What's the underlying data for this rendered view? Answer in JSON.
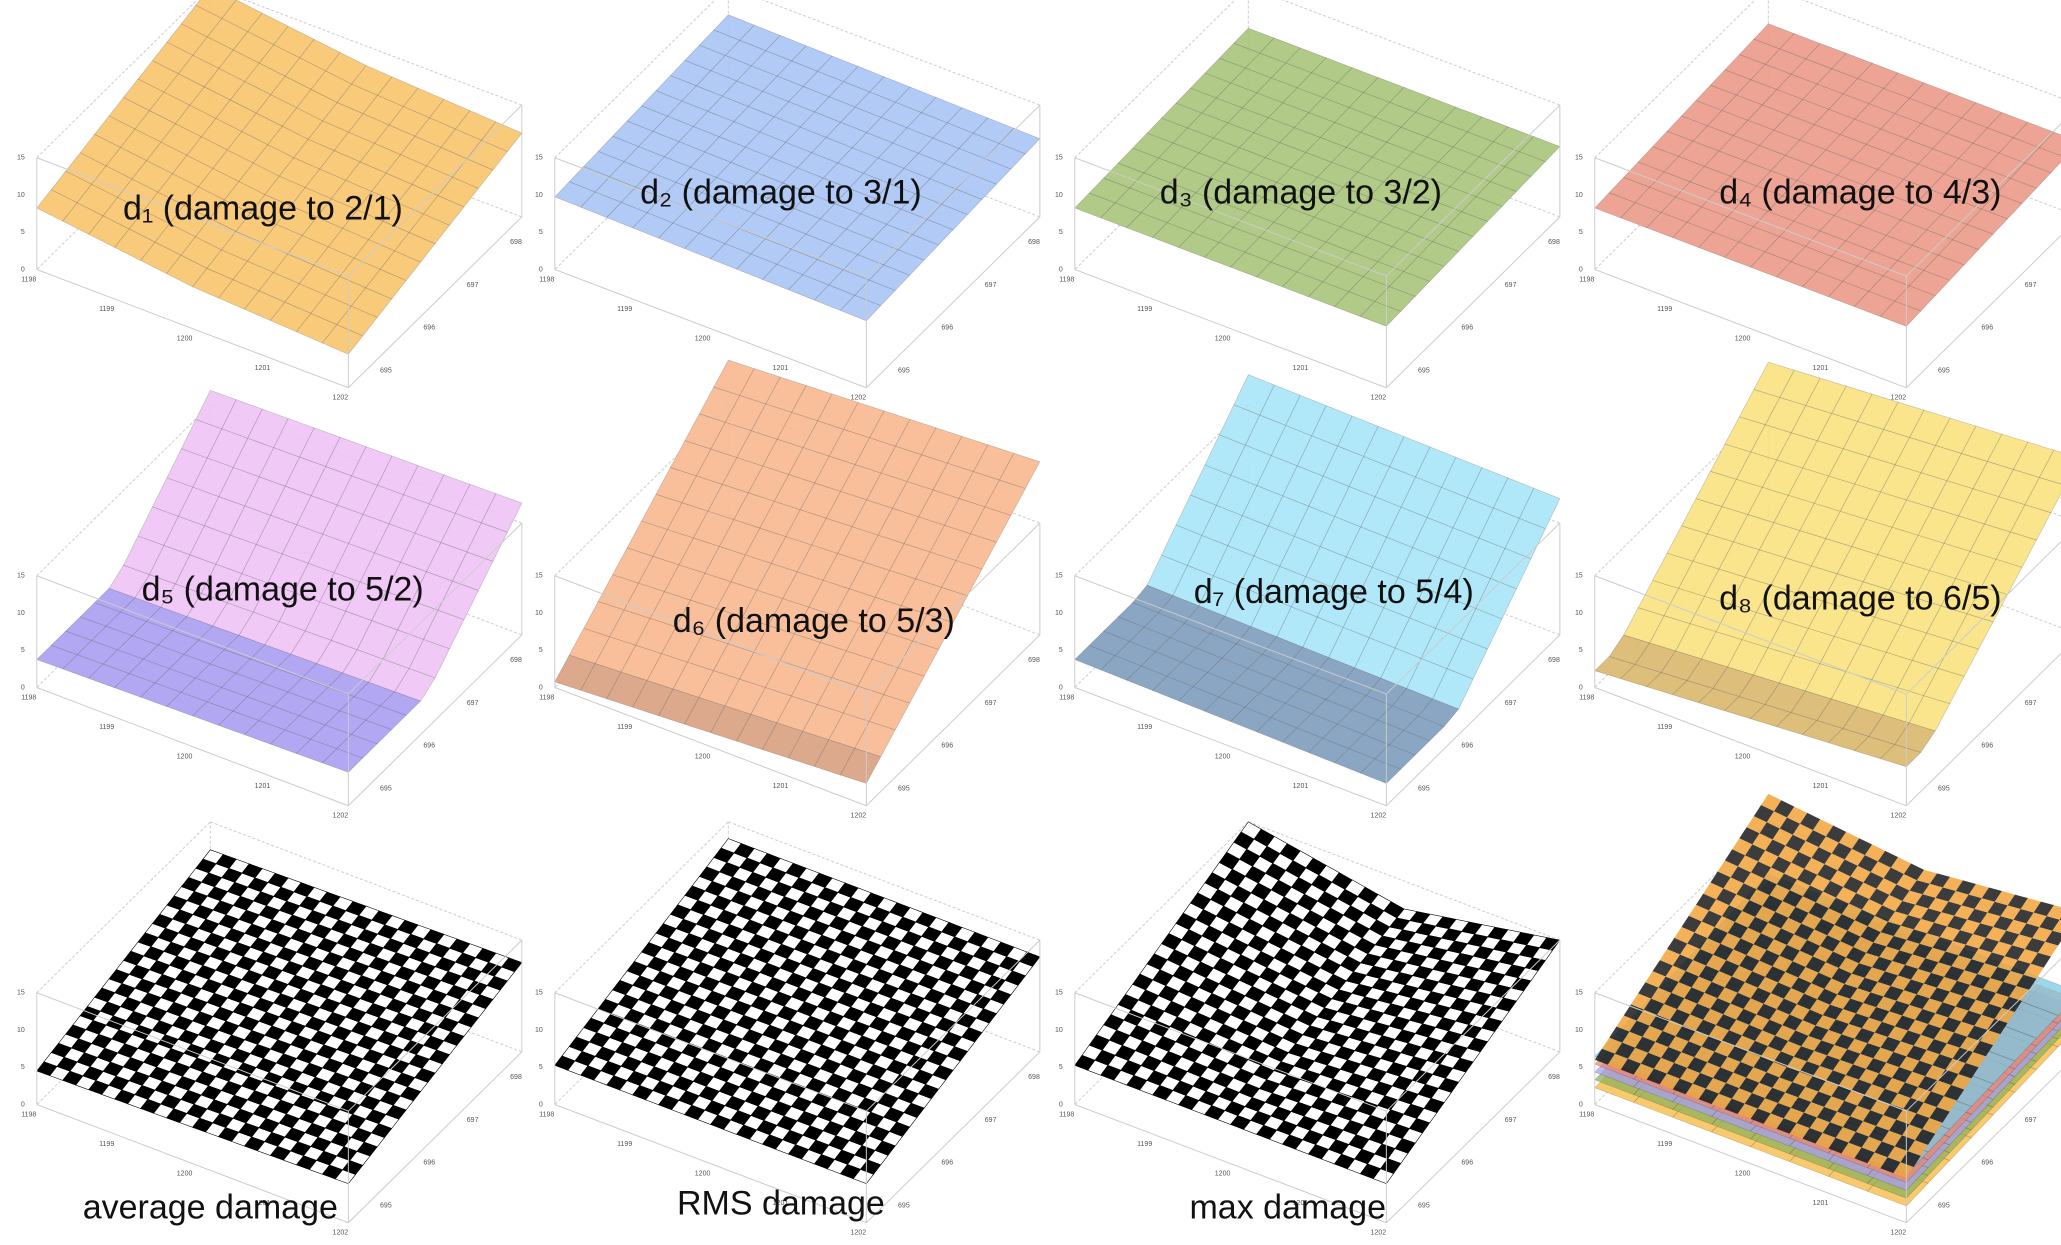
{
  "panels": [
    "d₁ (damage to 2/1)",
    "d₂ (damage to 3/1)",
    "d₃ (damage to 3/2)",
    "d₄ (damage to 4/3)",
    "d₅ (damage to 5/2)",
    "d₆ (damage to 5/3)",
    "d₇ (damage to 5/4)",
    "d₈ (damage to 6/5)",
    "average damage",
    "RMS damage",
    "max damage"
  ],
  "axes": {
    "x_ticks": [
      1198,
      1199,
      1200,
      1201,
      1202
    ],
    "y_ticks": [
      695,
      696,
      697,
      698
    ],
    "z_ticks": [
      0,
      5,
      10,
      15
    ]
  }
}
